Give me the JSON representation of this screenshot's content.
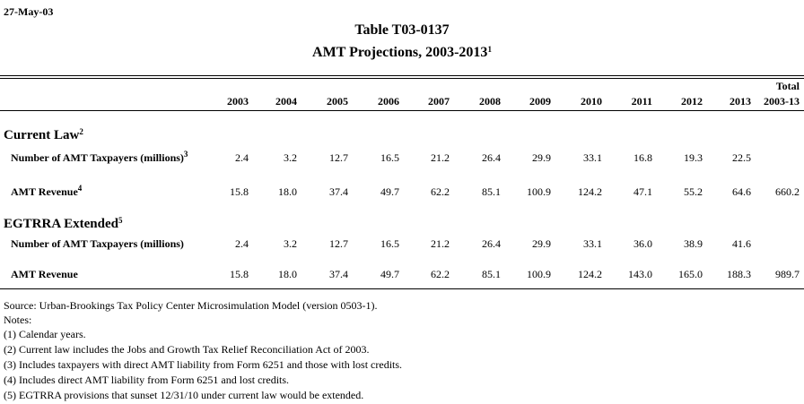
{
  "date": "27-May-03",
  "title": "Table T03-0137",
  "subtitle": {
    "text": "AMT Projections, 2003-2013",
    "note": "1"
  },
  "columns": [
    "2003",
    "2004",
    "2005",
    "2006",
    "2007",
    "2008",
    "2009",
    "2010",
    "2011",
    "2012",
    "2013"
  ],
  "total_header": [
    "Total",
    "2003-13"
  ],
  "sections": [
    {
      "title": "Current Law",
      "note": "2",
      "rows": [
        {
          "label": "Number of AMT Taxpayers (millions)",
          "note": "3",
          "values": [
            "2.4",
            "3.2",
            "12.7",
            "16.5",
            "21.2",
            "26.4",
            "29.9",
            "33.1",
            "16.8",
            "19.3",
            "22.5"
          ],
          "total": null
        },
        {
          "label": "AMT Revenue",
          "note": "4",
          "values": [
            "15.8",
            "18.0",
            "37.4",
            "49.7",
            "62.2",
            "85.1",
            "100.9",
            "124.2",
            "47.1",
            "55.2",
            "64.6"
          ],
          "total": "660.2"
        }
      ]
    },
    {
      "title": "EGTRRA Extended",
      "note": "5",
      "rows": [
        {
          "label": "Number of AMT Taxpayers (millions)",
          "note": null,
          "values": [
            "2.4",
            "3.2",
            "12.7",
            "16.5",
            "21.2",
            "26.4",
            "29.9",
            "33.1",
            "36.0",
            "38.9",
            "41.6"
          ],
          "total": null
        },
        {
          "label": "AMT Revenue",
          "note": null,
          "values": [
            "15.8",
            "18.0",
            "37.4",
            "49.7",
            "62.2",
            "85.1",
            "100.9",
            "124.2",
            "143.0",
            "165.0",
            "188.3"
          ],
          "total": "989.7"
        }
      ]
    }
  ],
  "source": "Source: Urban-Brookings Tax Policy Center Microsimulation Model (version 0503-1).",
  "notes_heading": "Notes:",
  "notes": [
    "(1) Calendar years.",
    "(2) Current law includes the Jobs and Growth Tax Relief Reconciliation Act of 2003.",
    "(3) Includes taxpayers with direct AMT liability from Form 6251 and those with lost credits.",
    "(4) Includes direct AMT liability from Form 6251 and lost credits.",
    "(5) EGTRRA provisions that sunset 12/31/10 under current law would be extended."
  ]
}
